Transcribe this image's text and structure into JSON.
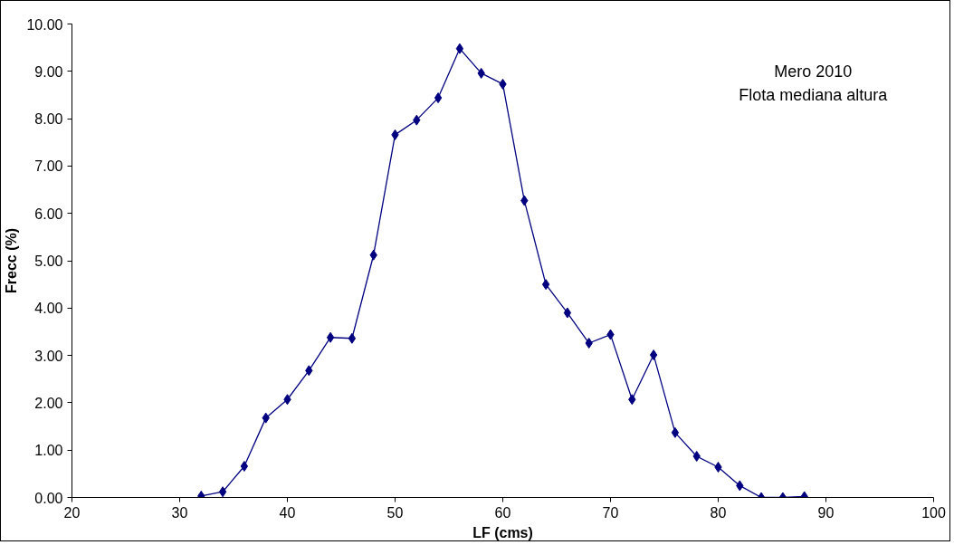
{
  "chart_data": {
    "type": "line",
    "xlabel": "LF (cms)",
    "ylabel": "Frecc (%)",
    "annotations": [
      "Mero 2010",
      "Flota mediana altura"
    ],
    "x": [
      32,
      34,
      36,
      38,
      40,
      42,
      44,
      46,
      48,
      50,
      52,
      54,
      56,
      58,
      60,
      62,
      64,
      66,
      68,
      70,
      72,
      74,
      76,
      78,
      80,
      82,
      84,
      86,
      88
    ],
    "series": [
      {
        "color": "#000080",
        "values": [
          0.03,
          0.12,
          0.66,
          1.68,
          2.07,
          2.68,
          3.38,
          3.36,
          5.12,
          7.66,
          7.97,
          8.44,
          9.48,
          8.96,
          8.73,
          6.27,
          4.5,
          3.9,
          3.26,
          3.44,
          2.07,
          3.01,
          1.37,
          0.87,
          0.64,
          0.25,
          0.0,
          0.0,
          0.02
        ]
      }
    ],
    "xlim": [
      20,
      100
    ],
    "xticks": [
      20,
      30,
      40,
      50,
      60,
      70,
      80,
      90,
      100
    ],
    "ylim": [
      0,
      10
    ],
    "yticks": [
      {
        "value": 0,
        "label": "0.00"
      },
      {
        "value": 1,
        "label": "1.00"
      },
      {
        "value": 2,
        "label": "2.00"
      },
      {
        "value": 3,
        "label": "3.00"
      },
      {
        "value": 4,
        "label": "4.00"
      },
      {
        "value": 5,
        "label": "5.00"
      },
      {
        "value": 6,
        "label": "6.00"
      },
      {
        "value": 7,
        "label": "7.00"
      },
      {
        "value": 8,
        "label": "8.00"
      },
      {
        "value": 9,
        "label": "9.00"
      },
      {
        "value": 10,
        "label": "10.00"
      }
    ],
    "grid": false,
    "marker": "diamond",
    "line_style": "solid"
  }
}
